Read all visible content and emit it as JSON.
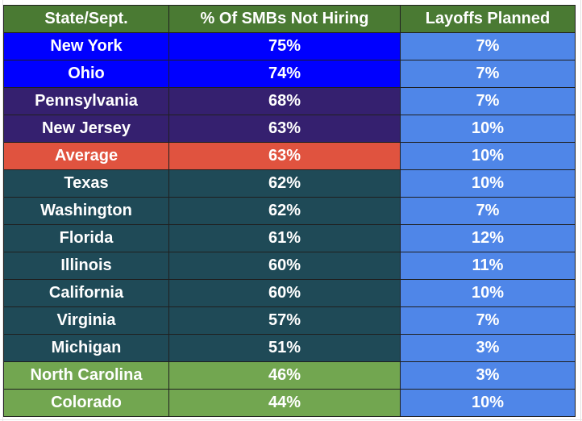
{
  "chart_data": {
    "type": "table",
    "columns": [
      "State/Sept.",
      "% Of SMBs Not Hiring",
      "Layoffs Planned"
    ],
    "rows": [
      {
        "state": "New York",
        "not_hiring": "75%",
        "layoffs": "7%",
        "group": "top"
      },
      {
        "state": "Ohio",
        "not_hiring": "74%",
        "layoffs": "7%",
        "group": "top"
      },
      {
        "state": "Pennsylvania",
        "not_hiring": "68%",
        "layoffs": "7%",
        "group": "high"
      },
      {
        "state": "New Jersey",
        "not_hiring": "63%",
        "layoffs": "10%",
        "group": "high"
      },
      {
        "state": "Average",
        "not_hiring": "63%",
        "layoffs": "10%",
        "group": "average"
      },
      {
        "state": "Texas",
        "not_hiring": "62%",
        "layoffs": "10%",
        "group": "mid"
      },
      {
        "state": "Washington",
        "not_hiring": "62%",
        "layoffs": "7%",
        "group": "mid"
      },
      {
        "state": "Florida",
        "not_hiring": "61%",
        "layoffs": "12%",
        "group": "mid"
      },
      {
        "state": "Illinois",
        "not_hiring": "60%",
        "layoffs": "11%",
        "group": "mid"
      },
      {
        "state": "California",
        "not_hiring": "60%",
        "layoffs": "10%",
        "group": "mid"
      },
      {
        "state": "Virginia",
        "not_hiring": "57%",
        "layoffs": "7%",
        "group": "mid"
      },
      {
        "state": "Michigan",
        "not_hiring": "51%",
        "layoffs": "3%",
        "group": "mid"
      },
      {
        "state": "North Carolina",
        "not_hiring": "46%",
        "layoffs": "3%",
        "group": "low"
      },
      {
        "state": "Colorado",
        "not_hiring": "44%",
        "layoffs": "10%",
        "group": "low"
      }
    ]
  },
  "colors": {
    "header": "#4a7a33",
    "top": "#0000ff",
    "high": "#35206f",
    "average": "#e0533f",
    "mid": "#1f4a57",
    "low": "#72a650",
    "layoffs_column": "#4f86e8",
    "cell_border": "#1f1f1f",
    "sheet_gridline": "#e3e3e3"
  }
}
